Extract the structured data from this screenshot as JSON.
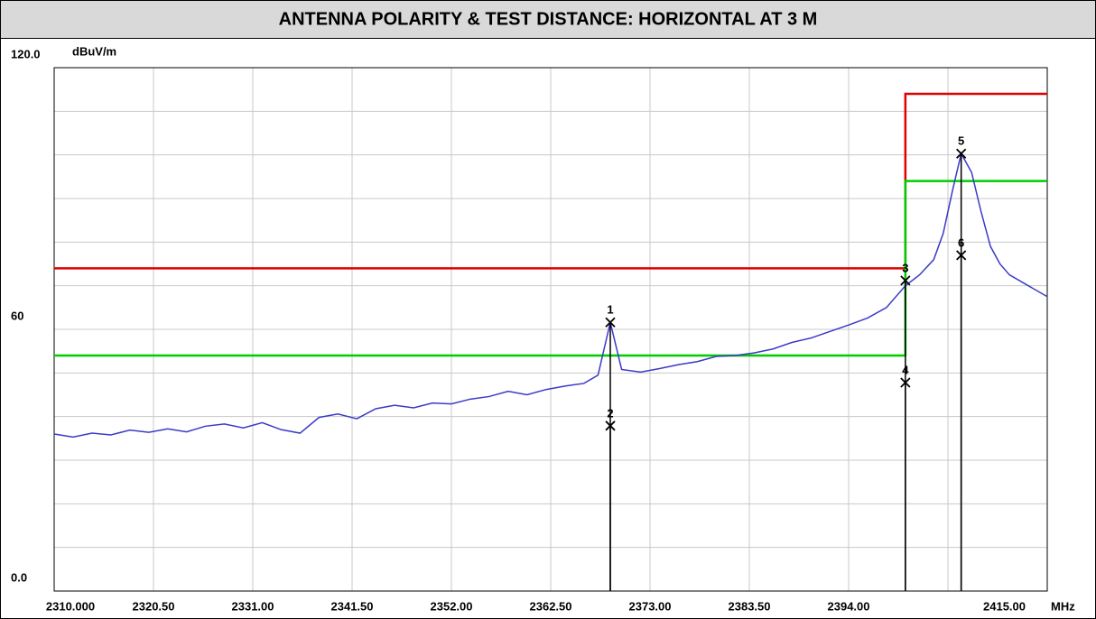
{
  "chart_data": {
    "type": "line",
    "title": "ANTENNA POLARITY & TEST DISTANCE: HORIZONTAL AT 3 M",
    "y_label": "dBuV/m",
    "x_label": "MHz",
    "xlim": [
      2310,
      2415
    ],
    "ylim": [
      0,
      120
    ],
    "xticks": [
      {
        "value": 2310,
        "label": "2310.000"
      },
      {
        "value": 2320.5,
        "label": "2320.50"
      },
      {
        "value": 2331,
        "label": "2331.00"
      },
      {
        "value": 2341.5,
        "label": "2341.50"
      },
      {
        "value": 2352,
        "label": "2352.00"
      },
      {
        "value": 2362.5,
        "label": "2362.50"
      },
      {
        "value": 2373,
        "label": "2373.00"
      },
      {
        "value": 2383.5,
        "label": "2383.50"
      },
      {
        "value": 2394,
        "label": "2394.00"
      },
      {
        "value": 2404.5,
        "label": null
      },
      {
        "value": 2415,
        "label": "2415.00"
      }
    ],
    "yticks": [
      {
        "value": 0,
        "label": "0.0"
      },
      {
        "value": 10,
        "label": null
      },
      {
        "value": 20,
        "label": null
      },
      {
        "value": 30,
        "label": null
      },
      {
        "value": 40,
        "label": null
      },
      {
        "value": 50,
        "label": null
      },
      60,
      {
        "value": 70,
        "label": null
      },
      {
        "value": 80,
        "label": null
      },
      {
        "value": 90,
        "label": null
      },
      {
        "value": 100,
        "label": null
      },
      {
        "value": 110,
        "label": null
      },
      {
        "value": 120,
        "label": "120.0"
      }
    ],
    "grid": true,
    "series": [
      {
        "color": "#e00000",
        "x": [
          2310,
          2400,
          2400,
          2415
        ],
        "values": [
          74,
          74,
          114,
          114
        ]
      },
      {
        "color": "#00cc00",
        "x": [
          2310,
          2400,
          2400,
          2415
        ],
        "values": [
          54,
          54,
          94,
          94
        ]
      },
      {
        "color": "#3a3ac8",
        "x": [
          2310,
          2312,
          2314,
          2316,
          2318,
          2320,
          2322,
          2324,
          2326,
          2328,
          2330,
          2332,
          2334,
          2336,
          2338,
          2340,
          2342,
          2344,
          2346,
          2348,
          2350,
          2352,
          2354,
          2356,
          2358,
          2360,
          2362,
          2364,
          2366,
          2367.5,
          2368.8,
          2370,
          2372,
          2374,
          2376,
          2378,
          2380,
          2382,
          2384,
          2386,
          2388,
          2390,
          2392,
          2394,
          2396,
          2398,
          2400,
          2401.5,
          2403,
          2404,
          2405,
          2405.9,
          2407,
          2408,
          2409,
          2410,
          2411,
          2413,
          2415
        ],
        "values": [
          36.0,
          35.3,
          36.2,
          35.8,
          36.9,
          36.4,
          37.2,
          36.5,
          37.8,
          38.3,
          37.4,
          38.6,
          37.0,
          36.2,
          39.8,
          40.6,
          39.5,
          41.8,
          42.6,
          42.0,
          43.1,
          42.9,
          44.0,
          44.6,
          45.8,
          45.0,
          46.2,
          47.0,
          47.6,
          49.5,
          61.6,
          50.8,
          50.2,
          51.0,
          51.9,
          52.6,
          53.8,
          54.0,
          54.6,
          55.5,
          57.0,
          58.0,
          59.5,
          61.0,
          62.6,
          65.0,
          70.0,
          72.5,
          76.0,
          82.0,
          92.0,
          100.3,
          96.0,
          87.0,
          79.0,
          75.0,
          72.5,
          70.0,
          67.5
        ]
      }
    ],
    "markers": {
      "labels": [
        "1",
        "2",
        "3",
        "4",
        "5",
        "6"
      ],
      "x": [
        2368.8,
        2368.8,
        2400,
        2400,
        2405.9,
        2405.9
      ],
      "values": [
        61.6,
        37.9,
        71.2,
        47.8,
        100.3,
        77.0
      ]
    }
  }
}
